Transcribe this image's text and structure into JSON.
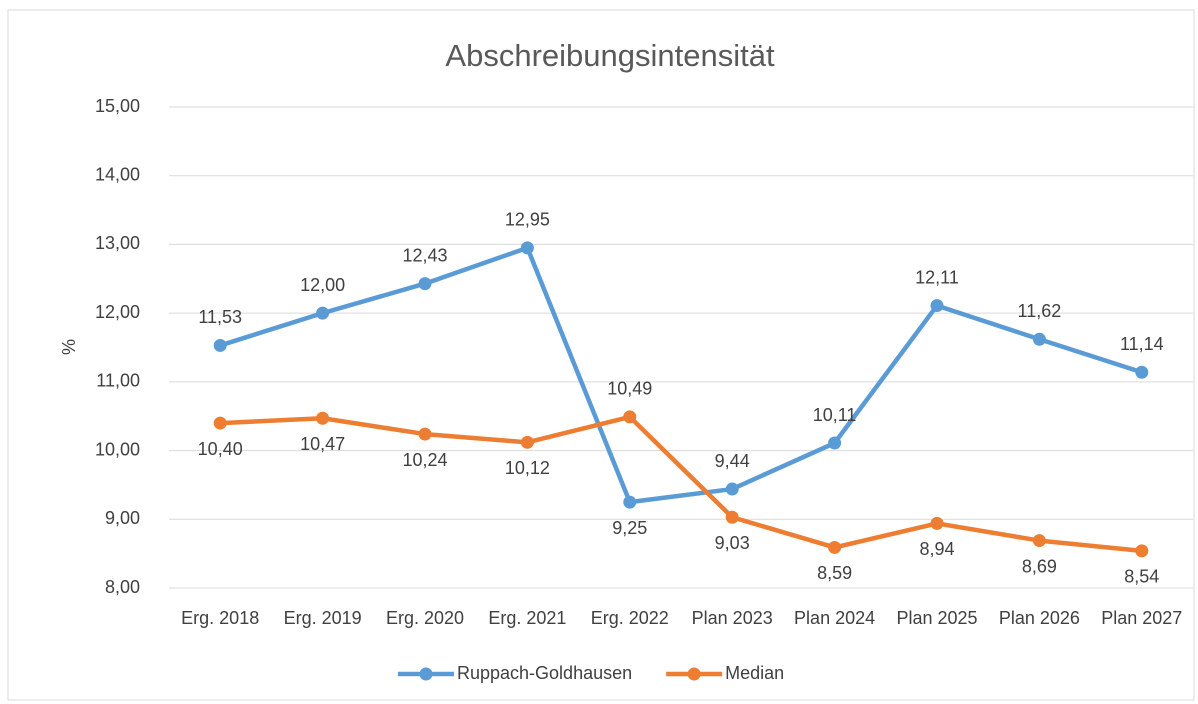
{
  "chart_data": {
    "type": "line",
    "title": "Abschreibungsintensität",
    "y_label": "%",
    "categories": [
      "Erg. 2018",
      "Erg. 2019",
      "Erg. 2020",
      "Erg. 2021",
      "Erg. 2022",
      "Plan 2023",
      "Plan 2024",
      "Plan 2025",
      "Plan 2026",
      "Plan 2027"
    ],
    "series": [
      {
        "name": "Ruppach-Goldhausen",
        "color": "#5b9bd5",
        "values": [
          11.53,
          12.0,
          12.43,
          12.95,
          9.25,
          9.44,
          10.11,
          12.11,
          11.62,
          11.14
        ],
        "value_labels": [
          "11,53",
          "12,00",
          "12,43",
          "12,95",
          "9,25",
          "9,44",
          "10,11",
          "12,11",
          "11,62",
          "11,14"
        ]
      },
      {
        "name": "Median",
        "color": "#ed7d31",
        "values": [
          10.4,
          10.47,
          10.24,
          10.12,
          10.49,
          9.03,
          8.59,
          8.94,
          8.69,
          8.54
        ],
        "value_labels": [
          "10,40",
          "10,47",
          "10,24",
          "10,12",
          "10,49",
          "9,03",
          "8,59",
          "8,94",
          "8,69",
          "8,54"
        ]
      }
    ],
    "ylim": [
      8,
      15
    ],
    "yticks": [
      {
        "value": 8,
        "label": "8,00"
      },
      {
        "value": 9,
        "label": "9,00"
      },
      {
        "value": 10,
        "label": "10,00"
      },
      {
        "value": 11,
        "label": "11,00"
      },
      {
        "value": 12,
        "label": "12,00"
      },
      {
        "value": 13,
        "label": "13,00"
      },
      {
        "value": 14,
        "label": "14,00"
      },
      {
        "value": 15,
        "label": "15,00"
      }
    ],
    "grid": true,
    "legend": "bottom"
  }
}
